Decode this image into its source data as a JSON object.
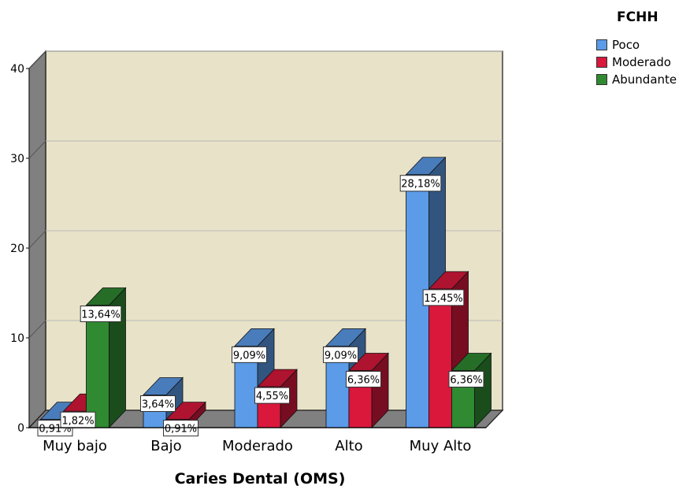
{
  "chart_data": {
    "type": "bar",
    "title": "",
    "xlabel": "Caries Dental (OMS)",
    "ylabel": "",
    "ylim": [
      0,
      40
    ],
    "yticks": [
      0,
      10,
      20,
      30,
      40
    ],
    "grid": true,
    "legend_title": "FCHH",
    "legend_position": "top-right",
    "categories": [
      "Muy bajo",
      "Bajo",
      "Moderado",
      "Alto",
      "Muy Alto"
    ],
    "series": [
      {
        "name": "Poco",
        "color": "#5b9be8",
        "values": [
          0.91,
          3.64,
          9.09,
          9.09,
          28.18
        ],
        "labels": [
          "0,91%",
          "3,64%",
          "9,09%",
          "9,09%",
          "28,18%"
        ]
      },
      {
        "name": "Moderado",
        "color": "#d9183c",
        "values": [
          1.82,
          0.91,
          4.55,
          6.36,
          15.45
        ],
        "labels": [
          "1,82%",
          "0,91%",
          "4,55%",
          "6,36%",
          "15,45%"
        ]
      },
      {
        "name": "Abundante",
        "color": "#2f8a32",
        "values": [
          13.64,
          null,
          null,
          null,
          6.36
        ],
        "labels": [
          "13,64%",
          null,
          null,
          null,
          "6,36%"
        ]
      }
    ]
  }
}
